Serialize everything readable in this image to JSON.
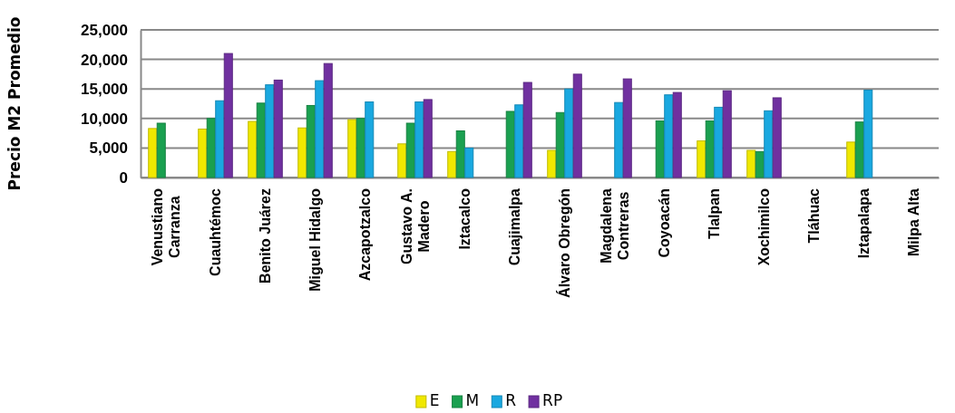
{
  "chart_data": {
    "type": "bar",
    "ylabel": "Precio M2 Promedio",
    "categories": [
      "Venustiano Carranza",
      "Cuauhtémoc",
      "Benito Juárez",
      "Miguel Hidalgo",
      "Azcapotzalco",
      "Gustavo A. Madero",
      "Iztacalco",
      "Cuajimalpa",
      "Álvaro Obregón",
      "Magdalena Contreras",
      "Coyoacán",
      "Tlalpan",
      "Xochimilco",
      "Tláhuac",
      "Iztapalapa",
      "Milpa Alta"
    ],
    "series": [
      {
        "name": "E",
        "color": "#f0e800",
        "values": [
          8300,
          8200,
          9500,
          8400,
          9800,
          5700,
          4400,
          null,
          4600,
          null,
          null,
          6200,
          4600,
          null,
          6000,
          null
        ]
      },
      {
        "name": "M",
        "color": "#1aa050",
        "values": [
          9200,
          10000,
          12600,
          12200,
          10000,
          9200,
          7900,
          11200,
          11000,
          null,
          9600,
          9600,
          4400,
          null,
          9400,
          null
        ]
      },
      {
        "name": "R",
        "color": "#19a8e0",
        "values": [
          null,
          13000,
          15700,
          16400,
          12800,
          12800,
          5000,
          12300,
          15000,
          12700,
          14000,
          11900,
          11300,
          null,
          14800,
          null
        ]
      },
      {
        "name": "RP",
        "color": "#7030a0",
        "values": [
          null,
          21000,
          16500,
          19300,
          null,
          13200,
          null,
          16100,
          17500,
          16700,
          14400,
          14700,
          13500,
          null,
          null,
          null
        ]
      }
    ],
    "ylim": [
      0,
      25000
    ],
    "yticks": [
      {
        "value": 0,
        "label": "0"
      },
      {
        "value": 5000,
        "label": "5,000"
      },
      {
        "value": 10000,
        "label": "10,000"
      },
      {
        "value": 15000,
        "label": "15,000"
      },
      {
        "value": 20000,
        "label": "20,000"
      },
      {
        "value": 25000,
        "label": "25,000"
      }
    ],
    "grid": "y",
    "legend": "bottom"
  }
}
